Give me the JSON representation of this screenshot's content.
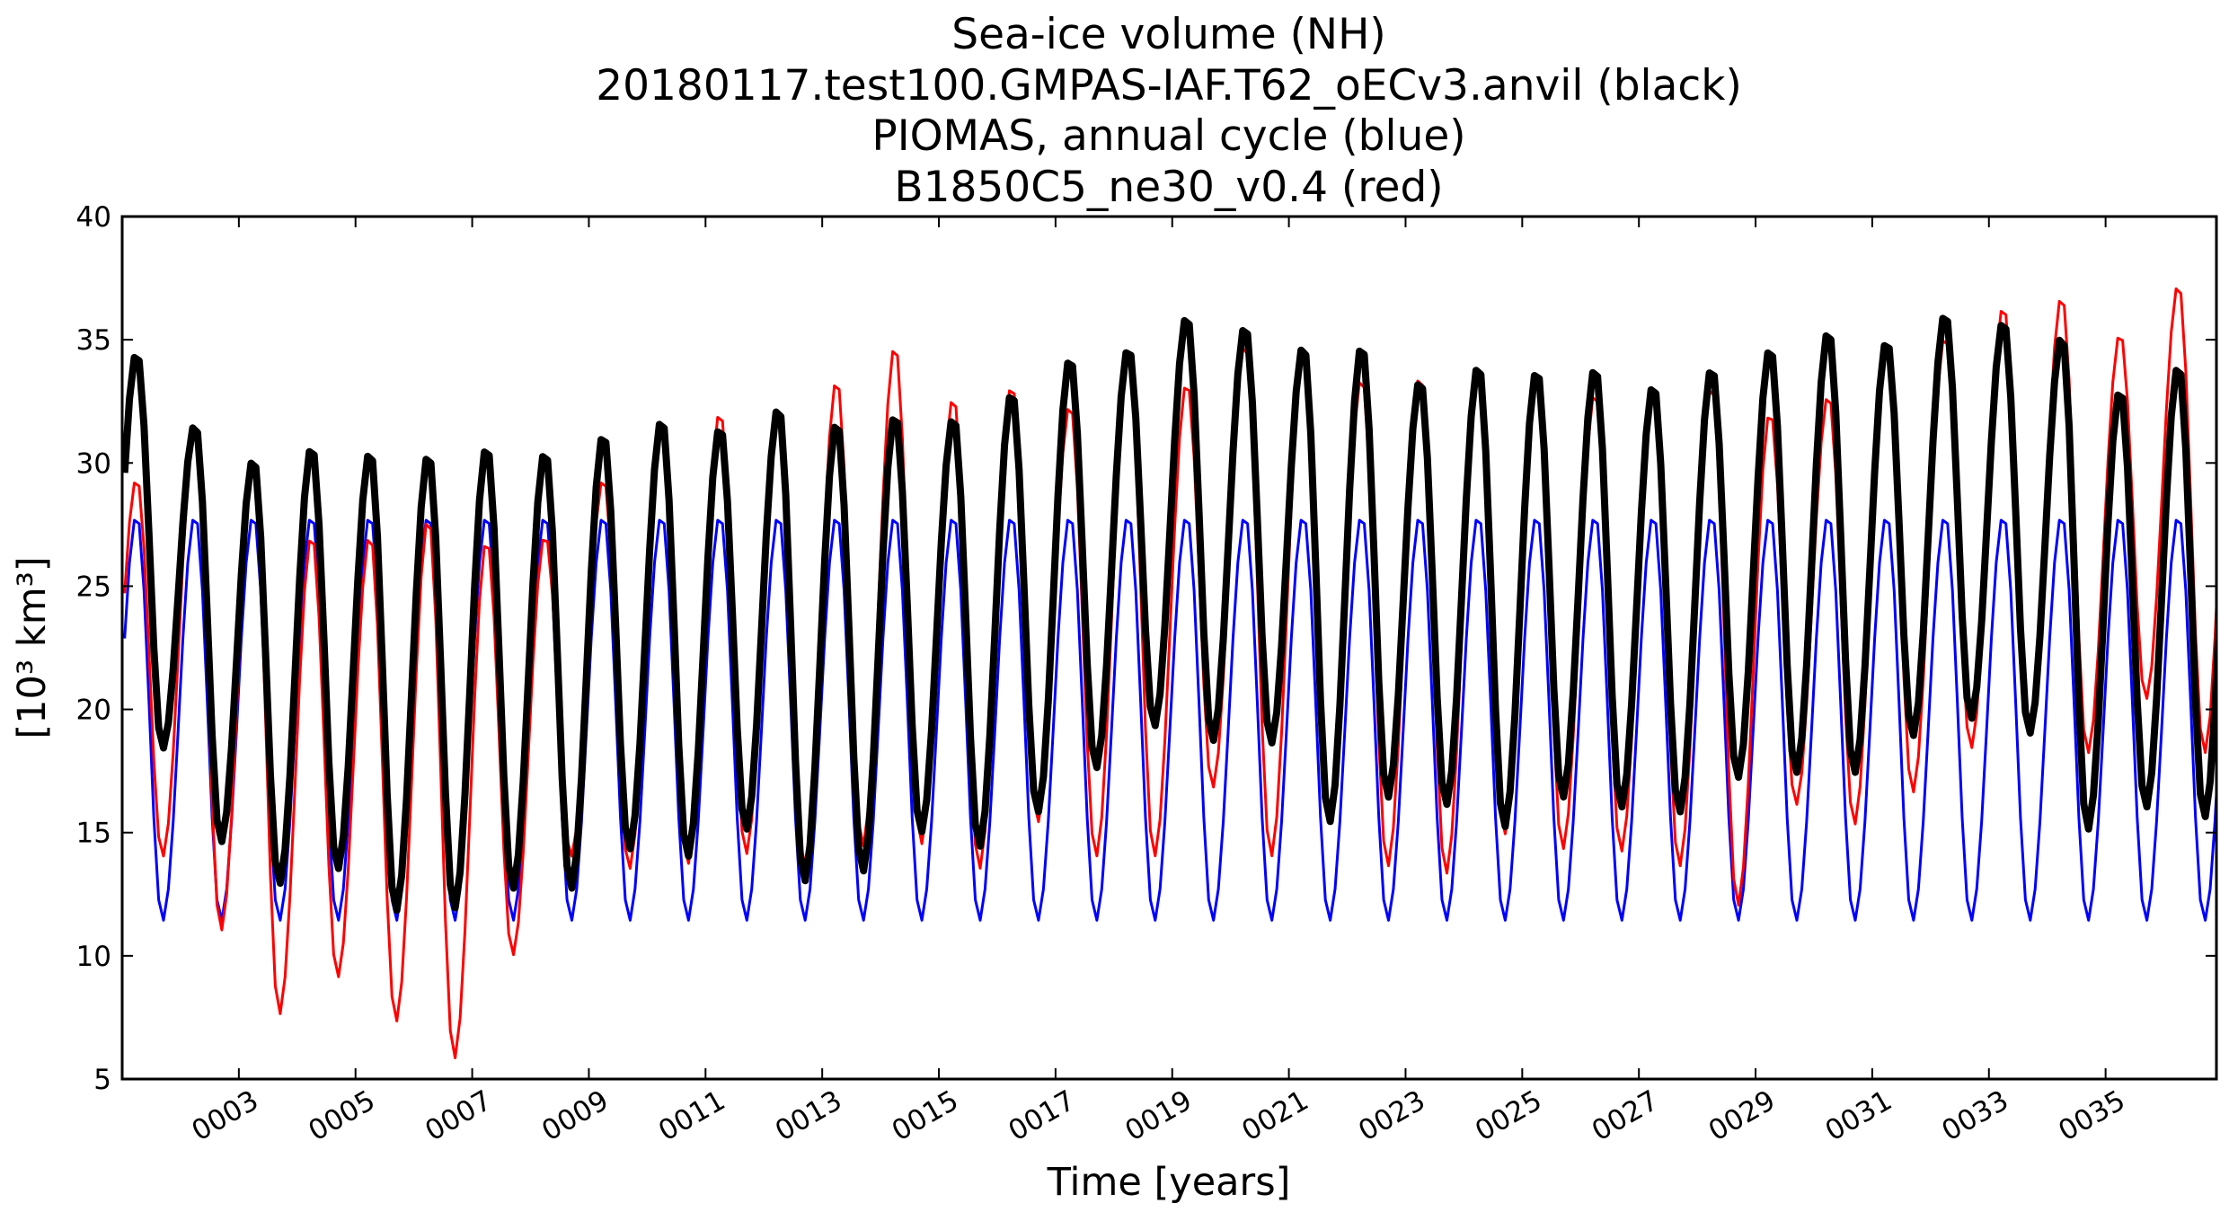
{
  "chart_data": {
    "type": "line",
    "title_lines": [
      "Sea-ice volume (NH)",
      "20180117.test100.GMPAS-IAF.T62_oECv3.anvil (black)",
      "PIOMAS, annual cycle (blue)",
      "B1850C5_ne30_v0.4 (red)"
    ],
    "xlabel": "Time [years]",
    "ylabel": "[10³ km³]",
    "xlim": [
      1.0,
      36.9
    ],
    "ylim": [
      5,
      40
    ],
    "yticks": [
      5,
      10,
      15,
      20,
      25,
      30,
      35,
      40
    ],
    "xticks": [
      3,
      5,
      7,
      9,
      11,
      13,
      15,
      17,
      19,
      21,
      23,
      25,
      27,
      29,
      31,
      33,
      35
    ],
    "xtick_labels": [
      "0003",
      "0005",
      "0007",
      "0009",
      "0011",
      "0013",
      "0015",
      "0017",
      "0019",
      "0021",
      "0023",
      "0025",
      "0027",
      "0029",
      "0031",
      "0033",
      "0035"
    ],
    "series": [
      {
        "name": "PIOMAS, annual cycle",
        "color": "#0000ff",
        "stroke": 3,
        "annual_max": [
          27.9
        ],
        "annual_min": [
          11.4
        ],
        "peak_phase": 0.25,
        "trough_phase": 0.69
      },
      {
        "name": "B1850C5_ne30_v0.4",
        "color": "#ff0000",
        "stroke": 3,
        "annual_max": [
          29.4,
          31.3,
          29.8,
          27.1,
          27.1,
          27.8,
          26.9,
          27.1,
          29.4,
          31.5,
          32.1,
          32.4,
          33.4,
          34.8,
          32.7,
          33.2,
          32.4,
          34.4,
          33.3,
          34.9,
          34.6,
          33.5,
          33.6,
          33.5,
          33.6,
          32.9,
          32.8,
          33.2,
          32.1,
          32.8,
          35.1,
          35.2,
          36.4,
          36.8,
          35.3,
          37.3
        ],
        "annual_min": [
          14.0,
          11.0,
          7.6,
          9.1,
          7.3,
          5.8,
          10.0,
          14.0,
          13.5,
          13.7,
          14.1,
          13.6,
          14.4,
          14.5,
          13.5,
          15.4,
          14.0,
          14.0,
          16.8,
          14.0,
          15.8,
          13.6,
          13.3,
          14.9,
          14.3,
          14.2,
          13.6,
          12.0,
          16.1,
          15.3,
          16.6,
          18.4,
          18.9,
          18.2,
          20.4,
          18.2
        ],
        "peak_phase": 0.25,
        "trough_phase": 0.69
      },
      {
        "name": "20180117.test100.GMPAS-IAF.T62_oECv3.anvil",
        "color": "#000000",
        "stroke": 8,
        "annual_max": [
          34.5,
          31.6,
          30.2,
          30.7,
          30.5,
          30.4,
          30.7,
          30.5,
          31.2,
          31.8,
          31.5,
          32.3,
          31.7,
          32.0,
          31.9,
          32.9,
          34.3,
          34.7,
          36.0,
          35.6,
          34.8,
          34.8,
          33.4,
          34.0,
          33.8,
          33.9,
          33.2,
          33.9,
          34.7,
          35.4,
          35.0,
          36.1,
          35.8,
          35.2,
          33.0,
          34.0
        ],
        "annual_min": [
          18.4,
          14.6,
          12.9,
          13.5,
          11.8,
          11.9,
          12.7,
          12.7,
          14.3,
          14.0,
          15.1,
          13.0,
          13.4,
          15.0,
          14.4,
          15.8,
          17.6,
          19.3,
          18.7,
          18.6,
          15.4,
          16.4,
          16.1,
          15.2,
          16.4,
          16.0,
          15.8,
          17.2,
          17.4,
          17.4,
          18.9,
          19.6,
          19.0,
          15.1,
          16.0,
          15.6
        ],
        "peak_phase": 0.25,
        "trough_phase": 0.69
      }
    ]
  }
}
